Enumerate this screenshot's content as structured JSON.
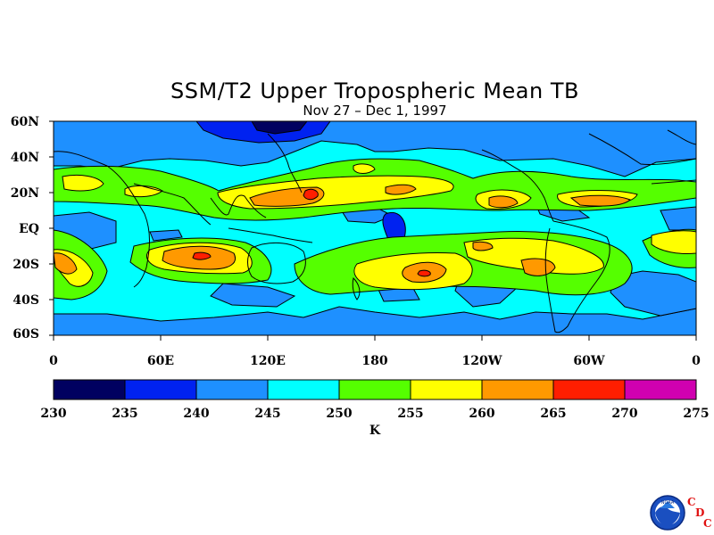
{
  "title": "SSM/T2 Upper Tropospheric Mean TB",
  "subtitle": "Nov 27 – Dec 1, 1997",
  "lat_labels": [
    "60N",
    "40N",
    "20N",
    "EQ",
    "20S",
    "40S",
    "60S"
  ],
  "lon_labels": [
    "0",
    "60E",
    "120E",
    "180",
    "120W",
    "60W",
    "0"
  ],
  "colorbar": {
    "ticks": [
      "230",
      "235",
      "240",
      "245",
      "250",
      "255",
      "260",
      "265",
      "270",
      "275"
    ],
    "unit": "K",
    "colors": [
      "#000060",
      "#0022f0",
      "#1e90ff",
      "#00ffff",
      "#55ff00",
      "#ffff00",
      "#ff9900",
      "#ff1e00",
      "#d000b0"
    ]
  },
  "logo": {
    "text": "NOAA",
    "letters": [
      "C",
      "D",
      "C"
    ]
  }
}
